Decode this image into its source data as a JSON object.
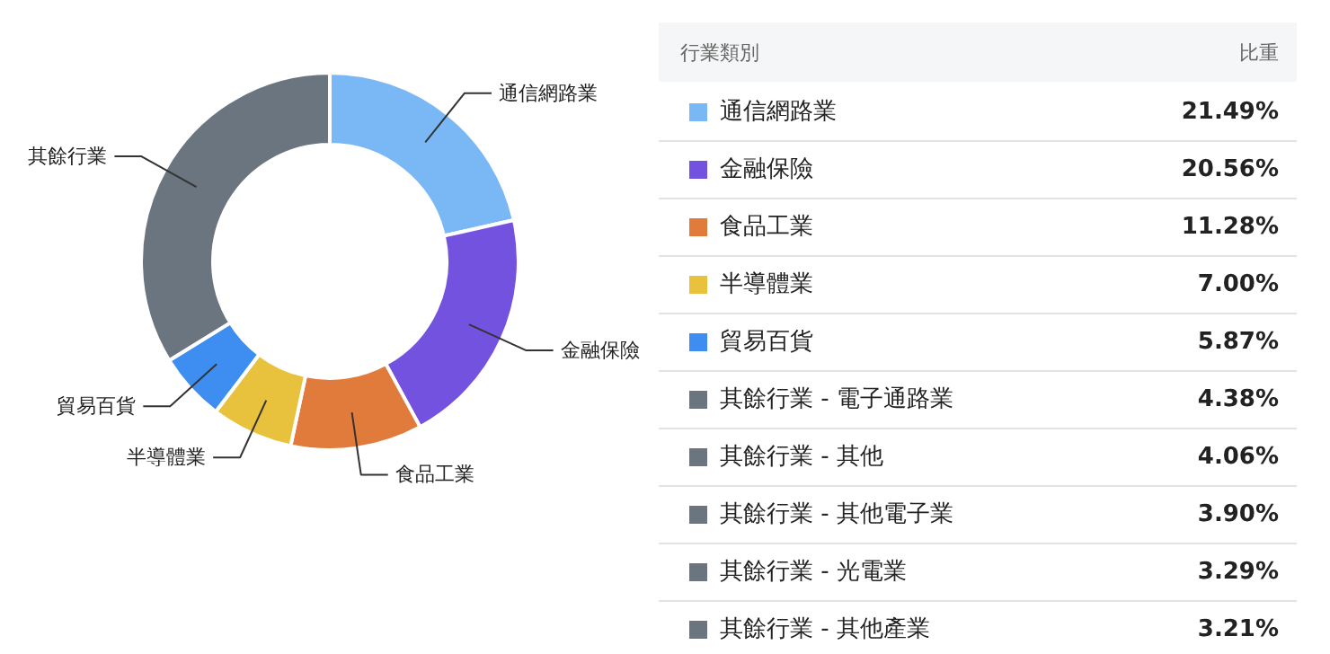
{
  "chart_data": [
    {
      "type": "donut",
      "categories": [
        "通信網路業",
        "金融保險",
        "食品工業",
        "半導體業",
        "貿易百貨",
        "其餘行業"
      ],
      "values": [
        21.49,
        20.56,
        11.28,
        7.0,
        5.87,
        33.8
      ],
      "colors": [
        "#7ab8f5",
        "#7352e0",
        "#e07b3c",
        "#e8c13d",
        "#3d8ef0",
        "#6b7580"
      ],
      "legend": false
    },
    {
      "type": "other",
      "annotations": [
        "行業類別",
        "比重"
      ],
      "categories": [
        "通信網路業",
        "金融保險",
        "食品工業",
        "半導體業",
        "貿易百貨",
        "其餘行業 - 電子通路業",
        "其餘行業 - 其他",
        "其餘行業 - 其他電子業",
        "其餘行業 - 光電業",
        "其餘行業 - 其他產業"
      ],
      "values": [
        21.49,
        20.56,
        11.28,
        7.0,
        5.87,
        4.38,
        4.06,
        3.9,
        3.29,
        3.21
      ],
      "value_labels": [
        "21.49%",
        "20.56%",
        "11.28%",
        "7.00%",
        "5.87%",
        "4.38%",
        "4.06%",
        "3.90%",
        "3.29%",
        "3.21%"
      ],
      "colors": [
        "#7ab8f5",
        "#7352e0",
        "#e07b3c",
        "#e8c13d",
        "#3d8ef0",
        "#6b7580",
        "#6b7580",
        "#6b7580",
        "#6b7580",
        "#6b7580"
      ]
    }
  ]
}
